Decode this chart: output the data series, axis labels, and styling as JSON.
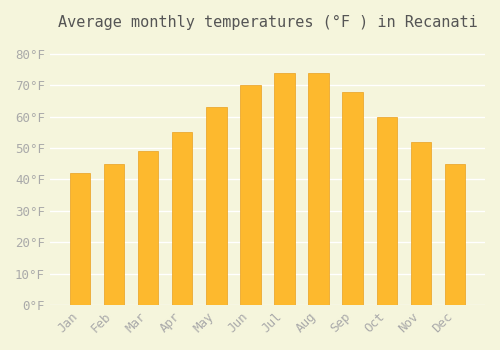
{
  "months": [
    "Jan",
    "Feb",
    "Mar",
    "Apr",
    "May",
    "Jun",
    "Jul",
    "Aug",
    "Sep",
    "Oct",
    "Nov",
    "Dec"
  ],
  "values": [
    42,
    45,
    49,
    55,
    63,
    70,
    74,
    74,
    68,
    60,
    52,
    45
  ],
  "bar_color": "#FDB92E",
  "bar_edge_color": "#E8A020",
  "title": "Average monthly temperatures (°F ) in Recanati",
  "ylim": [
    0,
    85
  ],
  "yticks": [
    0,
    10,
    20,
    30,
    40,
    50,
    60,
    70,
    80
  ],
  "ytick_labels": [
    "0°F",
    "10°F",
    "20°F",
    "30°F",
    "40°F",
    "50°F",
    "60°F",
    "70°F",
    "80°F"
  ],
  "background_color": "#F5F5DC",
  "grid_color": "#FFFFFF",
  "title_fontsize": 11,
  "tick_fontsize": 9,
  "bar_width": 0.6
}
